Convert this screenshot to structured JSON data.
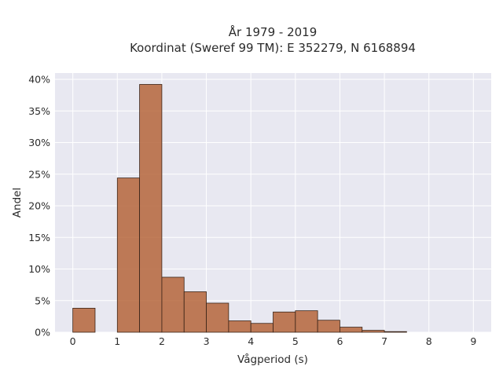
{
  "chart_data": {
    "type": "bar",
    "title_line1": "År 1979 - 2019",
    "title_line2": "Koordinat (Sweref 99 TM): E 352279, N 6168894",
    "xlabel": "Vågperiod (s)",
    "ylabel": "Andel",
    "bin_width": 0.5,
    "bins": [
      {
        "x0": 0.0,
        "value": 3.8
      },
      {
        "x0": 1.0,
        "value": 24.4
      },
      {
        "x0": 1.5,
        "value": 39.2
      },
      {
        "x0": 2.0,
        "value": 8.7
      },
      {
        "x0": 2.5,
        "value": 6.4
      },
      {
        "x0": 3.0,
        "value": 4.6
      },
      {
        "x0": 3.5,
        "value": 1.8
      },
      {
        "x0": 4.0,
        "value": 1.4
      },
      {
        "x0": 4.5,
        "value": 3.2
      },
      {
        "x0": 5.0,
        "value": 3.4
      },
      {
        "x0": 5.5,
        "value": 1.9
      },
      {
        "x0": 6.0,
        "value": 0.8
      },
      {
        "x0": 6.5,
        "value": 0.3
      },
      {
        "x0": 7.0,
        "value": 0.1
      }
    ],
    "xlim": [
      -0.4,
      9.4
    ],
    "ylim": [
      0,
      41
    ],
    "xticks": [
      0,
      1,
      2,
      3,
      4,
      5,
      6,
      7,
      8,
      9
    ],
    "xtick_labels": [
      "0",
      "1",
      "2",
      "3",
      "4",
      "5",
      "6",
      "7",
      "8",
      "9"
    ],
    "yticks": [
      0,
      5,
      10,
      15,
      20,
      25,
      30,
      35,
      40
    ],
    "ytick_labels": [
      "0%",
      "5%",
      "10%",
      "15%",
      "20%",
      "25%",
      "30%",
      "35%",
      "40%"
    ],
    "grid": true,
    "legend": "none",
    "colors": {
      "bar_fill": "#b5653b",
      "bar_edge": "#3a2418",
      "plot_background": "#e8e8f1",
      "grid": "#ffffff"
    }
  }
}
